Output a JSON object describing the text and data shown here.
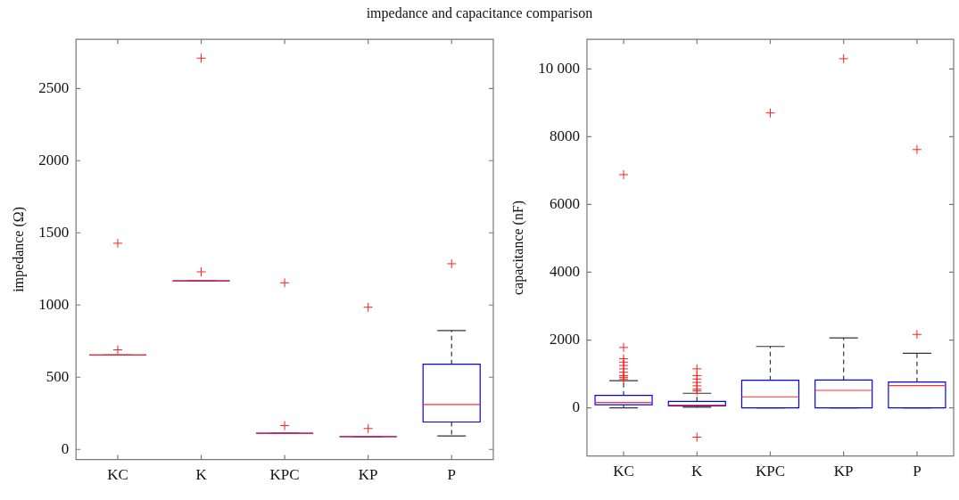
{
  "chart_data": [
    {
      "type": "box",
      "title": "impedance and capacitance comparison",
      "ylabel": "impedance (Ω)",
      "categories": [
        "KC",
        "K",
        "KPC",
        "KP",
        "P"
      ],
      "ylim": [
        -70,
        2840
      ],
      "yticks": [
        0,
        500,
        1000,
        1500,
        2000,
        2500
      ],
      "grid": false,
      "legend": false,
      "series": [
        {
          "color": "#0000ff",
          "boxes": [
            {
              "low": 654,
              "q1": 654,
              "median": 654,
              "q3": 654,
              "high": 654,
              "outliers": [
                1428,
                690
              ]
            },
            {
              "low": 1167,
              "q1": 1167,
              "median": 1167,
              "q3": 1167,
              "high": 1167,
              "outliers": [
                2710,
                1230
              ]
            },
            {
              "low": 112,
              "q1": 112,
              "median": 112,
              "q3": 112,
              "high": 112,
              "outliers": [
                1154,
                165
              ]
            },
            {
              "low": 89,
              "q1": 89,
              "median": 89,
              "q3": 89,
              "high": 89,
              "outliers": [
                985,
                145
              ]
            },
            {
              "low": 93,
              "q1": 190,
              "median": 311,
              "q3": 590,
              "high": 823,
              "outliers": [
                1286
              ]
            }
          ]
        }
      ]
    },
    {
      "type": "box",
      "ylabel": "capacitance (nF)",
      "categories": [
        "KC",
        "K",
        "KPC",
        "KP",
        "P"
      ],
      "ylim": [
        -1420,
        10870
      ],
      "yticks": [
        0,
        2000,
        4000,
        6000,
        8000,
        {
          "value": 10000,
          "label": "10 000"
        }
      ],
      "grid": false,
      "legend": false,
      "series": [
        {
          "color": "#0000ff",
          "boxes": [
            {
              "low": 0,
              "q1": 90,
              "median": 155,
              "q3": 365,
              "high": 800,
              "outliers": [
                6880,
                1780,
                1450,
                1350,
                1250,
                1150,
                1050,
                950,
                900,
                850
              ]
            },
            {
              "low": 20,
              "q1": 60,
              "median": 80,
              "q3": 190,
              "high": 430,
              "outliers": [
                1150,
                950,
                850,
                750,
                650,
                550,
                500,
                -865
              ]
            },
            {
              "low": 0,
              "q1": 0,
              "median": 325,
              "q3": 812,
              "high": 1810,
              "outliers": [
                8700
              ]
            },
            {
              "low": 0,
              "q1": 0,
              "median": 515,
              "q3": 820,
              "high": 2065,
              "outliers": [
                10300
              ]
            },
            {
              "low": 0,
              "q1": 0,
              "median": 655,
              "q3": 760,
              "high": 1610,
              "outliers": [
                7620,
                2165
              ]
            }
          ]
        }
      ]
    }
  ]
}
